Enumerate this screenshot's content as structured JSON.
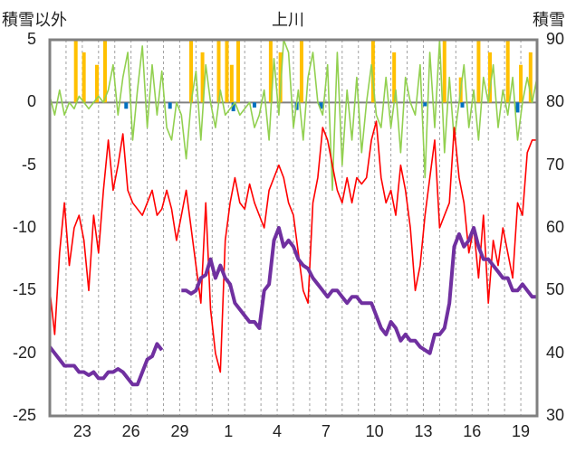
{
  "chart_data": {
    "type": "line",
    "title": "上川",
    "ylabel_left": "積雪以外",
    "ylabel_right": "積雪",
    "y_left_range": [
      -25,
      5
    ],
    "y_left_ticks": [
      5,
      0,
      -5,
      -10,
      -15,
      -20,
      -25
    ],
    "y_right_range": [
      30,
      90
    ],
    "y_right_ticks": [
      90,
      80,
      70,
      60,
      50,
      40,
      30
    ],
    "x_range_days": [
      0,
      30
    ],
    "x_ticks": [
      {
        "day": 2,
        "label": "23"
      },
      {
        "day": 5,
        "label": "26"
      },
      {
        "day": 8,
        "label": "29"
      },
      {
        "day": 11,
        "label": "1"
      },
      {
        "day": 14,
        "label": "4"
      },
      {
        "day": 17,
        "label": "7"
      },
      {
        "day": 20,
        "label": "10"
      },
      {
        "day": 23,
        "label": "13"
      },
      {
        "day": 26,
        "label": "16"
      },
      {
        "day": 29,
        "label": "19"
      }
    ],
    "grid": "vertical dashed daily",
    "colors": {
      "temperature": "#ff0000",
      "wind": "#92d050",
      "snow_depth": "#7030a0",
      "snowfall": "#ffc000",
      "precipitation": "#0070c0",
      "frame": "#808080"
    },
    "series": [
      {
        "key": "temperature",
        "axis": "left",
        "x": [
          0,
          0.3,
          0.6,
          0.9,
          1.2,
          1.5,
          1.8,
          2.1,
          2.4,
          2.7,
          3.0,
          3.3,
          3.6,
          3.9,
          4.2,
          4.5,
          4.8,
          5.1,
          5.4,
          5.7,
          6.0,
          6.3,
          6.6,
          6.9,
          7.2,
          7.5,
          7.8,
          8.1,
          8.4,
          8.7,
          9.0,
          9.3,
          9.6,
          9.9,
          10.2,
          10.5,
          10.8,
          11.1,
          11.4,
          11.7,
          12.0,
          12.3,
          12.6,
          12.9,
          13.2,
          13.5,
          13.8,
          14.1,
          14.4,
          14.7,
          15.0,
          15.3,
          15.6,
          15.9,
          16.2,
          16.5,
          16.8,
          17.1,
          17.4,
          17.7,
          18.0,
          18.3,
          18.6,
          18.9,
          19.2,
          19.5,
          19.8,
          20.1,
          20.4,
          20.7,
          21.0,
          21.3,
          21.6,
          21.9,
          22.2,
          22.5,
          22.8,
          23.1,
          23.4,
          23.7,
          24.0,
          24.3,
          24.6,
          24.9,
          25.2,
          25.5,
          25.8,
          26.1,
          26.4,
          26.7,
          27.0,
          27.3,
          27.6,
          27.9,
          28.2,
          28.5,
          28.8,
          29.1,
          29.4,
          29.7,
          30.0
        ],
        "values": [
          -15,
          -18.5,
          -12,
          -8,
          -13,
          -10,
          -9,
          -11,
          -15,
          -9,
          -12,
          -7,
          -3,
          -7,
          -5,
          -2.5,
          -7,
          -8,
          -8.5,
          -9,
          -8,
          -7,
          -9,
          -8.5,
          -7,
          -8.5,
          -11,
          -9,
          -7,
          -10,
          -13,
          -16,
          -8,
          -16.5,
          -20,
          -21.5,
          -11,
          -8,
          -6,
          -8,
          -8.5,
          -6.5,
          -8,
          -9,
          -10,
          -7,
          -6,
          -5,
          -6,
          -8,
          -9,
          -12,
          -15,
          -16,
          -8,
          -6,
          -2,
          -3,
          -5,
          -7,
          -8,
          -6,
          -8,
          -6,
          -6.5,
          -6,
          -3,
          -1.5,
          -6,
          -8,
          -7,
          -9,
          -5,
          -7,
          -10,
          -15,
          -13,
          -9,
          -6,
          -3,
          -10,
          -9,
          -8,
          -2,
          -6,
          -8,
          -12,
          -10,
          -14,
          -9,
          -16,
          -11,
          -13,
          -10,
          -12,
          -14,
          -8,
          -9,
          -4,
          -3,
          -3
        ]
      },
      {
        "key": "wind",
        "axis": "left",
        "x": [
          0,
          0.3,
          0.6,
          0.9,
          1.2,
          1.5,
          1.8,
          2.1,
          2.4,
          2.7,
          3.0,
          3.3,
          3.6,
          3.9,
          4.2,
          4.5,
          4.8,
          5.1,
          5.4,
          5.7,
          6.0,
          6.3,
          6.6,
          6.9,
          7.2,
          7.5,
          7.8,
          8.1,
          8.4,
          8.7,
          9.0,
          9.3,
          9.6,
          9.9,
          10.2,
          10.5,
          10.8,
          11.1,
          11.4,
          11.7,
          12.0,
          12.3,
          12.6,
          12.9,
          13.2,
          13.5,
          13.8,
          14.1,
          14.4,
          14.7,
          15.0,
          15.3,
          15.6,
          15.9,
          16.2,
          16.5,
          16.8,
          17.1,
          17.4,
          17.7,
          18.0,
          18.3,
          18.6,
          18.9,
          19.2,
          19.5,
          19.8,
          20.1,
          20.4,
          20.7,
          21.0,
          21.3,
          21.6,
          21.9,
          22.2,
          22.5,
          22.8,
          23.1,
          23.4,
          23.7,
          24.0,
          24.3,
          24.6,
          24.9,
          25.2,
          25.5,
          25.8,
          26.1,
          26.4,
          26.7,
          27.0,
          27.3,
          27.6,
          27.9,
          28.2,
          28.5,
          28.8,
          29.1,
          29.4,
          29.7,
          30.0
        ],
        "values": [
          0.5,
          -1,
          1,
          -1,
          0,
          -0.5,
          0.5,
          0,
          -0.5,
          0,
          0.5,
          0,
          1,
          3,
          -1,
          2,
          4,
          -3,
          1,
          4.5,
          -2,
          3,
          -1,
          2.5,
          -2,
          -3,
          0,
          -1,
          -4.5,
          0,
          2.5,
          -3,
          3,
          0,
          -2,
          1,
          -1,
          -0.5,
          0,
          -1,
          -0.5,
          0,
          -2,
          -1,
          1,
          -3,
          3.5,
          -1,
          5,
          4,
          -2,
          1,
          -3,
          2,
          4,
          0,
          -1,
          3,
          -7,
          4,
          -5,
          1,
          -3,
          2,
          -4,
          0,
          3,
          -1,
          -2,
          2,
          -2,
          1,
          -4,
          2,
          0,
          -1,
          3,
          -6,
          4,
          -2,
          5,
          -4,
          2,
          -3,
          0,
          3,
          -2,
          1,
          -3,
          2,
          0,
          3,
          -2,
          1,
          -1,
          2,
          -3,
          0,
          2,
          0,
          2
        ]
      },
      {
        "key": "snow_depth",
        "axis": "right",
        "x": [
          0,
          0.3,
          0.6,
          0.9,
          1.2,
          1.5,
          1.8,
          2.1,
          2.4,
          2.7,
          3.0,
          3.3,
          3.6,
          3.9,
          4.2,
          4.5,
          4.8,
          5.1,
          5.4,
          5.7,
          6.0,
          6.3,
          6.6,
          6.9,
          7.2,
          7.5,
          7.8,
          8.1,
          8.4,
          8.7,
          9.0,
          9.3,
          9.6,
          9.9,
          10.2,
          10.5,
          10.8,
          11.1,
          11.4,
          11.7,
          12.0,
          12.3,
          12.6,
          12.9,
          13.2,
          13.5,
          13.8,
          14.1,
          14.4,
          14.7,
          15.0,
          15.3,
          15.6,
          15.9,
          16.2,
          16.5,
          16.8,
          17.1,
          17.4,
          17.7,
          18.0,
          18.3,
          18.6,
          18.9,
          19.2,
          19.5,
          19.8,
          20.1,
          20.4,
          20.7,
          21.0,
          21.3,
          21.6,
          21.9,
          22.2,
          22.5,
          22.8,
          23.1,
          23.4,
          23.7,
          24.0,
          24.3,
          24.6,
          24.9,
          25.2,
          25.5,
          25.8,
          26.1,
          26.4,
          26.7,
          27.0,
          27.3,
          27.6,
          27.9,
          28.2,
          28.5,
          28.8,
          29.1,
          29.4,
          29.7,
          30.0
        ],
        "values": [
          41,
          40,
          39,
          38,
          38,
          38,
          37,
          37,
          36.5,
          37,
          36,
          36,
          37,
          37,
          37.5,
          37,
          36,
          35,
          35,
          37,
          39,
          39.5,
          41.5,
          40.5,
          null,
          null,
          null,
          50,
          50,
          49.5,
          50,
          52,
          52.5,
          55,
          52,
          54,
          52,
          51,
          48,
          47,
          46,
          45,
          45,
          44,
          50,
          51,
          58,
          60,
          57,
          58,
          57,
          55,
          54,
          53.5,
          52,
          51,
          50,
          49,
          50,
          50,
          49,
          48,
          49,
          49,
          48,
          48,
          48,
          46,
          44,
          43,
          45,
          44,
          42,
          43,
          42,
          42,
          41,
          40.5,
          40,
          43,
          43,
          44,
          48,
          57,
          59,
          57,
          58,
          60,
          57,
          55,
          55,
          54,
          53,
          52,
          52,
          50,
          50,
          51,
          50,
          49,
          49
        ]
      },
      {
        "key": "snowfall",
        "axis": "left",
        "bars": [
          {
            "x": 1.6,
            "h": 5
          },
          {
            "x": 2.1,
            "h": 4
          },
          {
            "x": 2.9,
            "h": 3
          },
          {
            "x": 3.4,
            "h": 5
          },
          {
            "x": 8.7,
            "h": 5
          },
          {
            "x": 9.4,
            "h": 4
          },
          {
            "x": 10.4,
            "h": 5
          },
          {
            "x": 10.9,
            "h": 5
          },
          {
            "x": 11.2,
            "h": 3
          },
          {
            "x": 11.6,
            "h": 5
          },
          {
            "x": 13.6,
            "h": 5
          },
          {
            "x": 14.2,
            "h": 4
          },
          {
            "x": 15.5,
            "h": 5
          },
          {
            "x": 19.9,
            "h": 5
          },
          {
            "x": 21.2,
            "h": 4
          },
          {
            "x": 24.3,
            "h": 5
          },
          {
            "x": 25.3,
            "h": 2
          },
          {
            "x": 26.4,
            "h": 5
          },
          {
            "x": 27.1,
            "h": 4
          },
          {
            "x": 28.2,
            "h": 5
          },
          {
            "x": 29.0,
            "h": 3
          },
          {
            "x": 29.6,
            "h": 4
          }
        ]
      },
      {
        "key": "precipitation",
        "axis": "left",
        "bars": [
          {
            "x": 4.7,
            "h": -0.5
          },
          {
            "x": 7.4,
            "h": -0.5
          },
          {
            "x": 11.3,
            "h": -0.7
          },
          {
            "x": 12.6,
            "h": -0.4
          },
          {
            "x": 15.2,
            "h": -0.6
          },
          {
            "x": 16.7,
            "h": -0.5
          },
          {
            "x": 23.1,
            "h": -0.3
          },
          {
            "x": 25.4,
            "h": -0.4
          },
          {
            "x": 28.8,
            "h": -0.8
          }
        ]
      }
    ]
  }
}
